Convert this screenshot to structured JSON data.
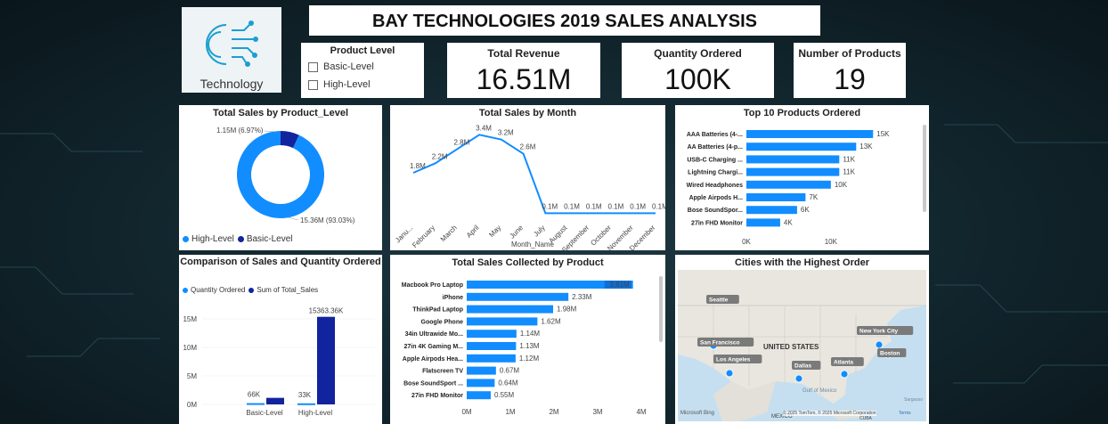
{
  "header": {
    "title": "BAY TECHNOLOGIES 2019 SALES ANALYSIS",
    "logo_text": "Technology"
  },
  "slicer": {
    "title": "Product Level",
    "options": [
      "Basic-Level",
      "High-Level"
    ]
  },
  "kpis": [
    {
      "label": "Total Revenue",
      "value": "16.51M"
    },
    {
      "label": "Quantity Ordered",
      "value": "100K"
    },
    {
      "label": "Number of Products",
      "value": "19"
    }
  ],
  "colors": {
    "primary": "#118DFF",
    "dark": "#12239E",
    "accent_label_bg": "#0F6FD6"
  },
  "donut": {
    "title": "Total Sales by Product_Level",
    "labels": [
      "1.15M (6.97%)",
      "15.36M (93.03%)"
    ],
    "legend": [
      "High-Level",
      "Basic-Level"
    ]
  },
  "month": {
    "title": "Total Sales by Month",
    "xlabel": "Month_Name",
    "point_labels": [
      "1.8M",
      "2.2M",
      "2.8M",
      "3.4M",
      "3.2M",
      "2.6M",
      "0.1M",
      "0.1M",
      "0.1M",
      "0.1M",
      "0.1M",
      "0.1M"
    ]
  },
  "top10": {
    "title": "Top 10 Products Ordered",
    "axis": [
      "0K",
      "10K"
    ]
  },
  "compare": {
    "title": "Comparison of Sales and Quantity Ordered",
    "legend": [
      "Quantity Ordered",
      "Sum of Total_Sales"
    ],
    "yticks": [
      "15M",
      "10M",
      "5M",
      "0M"
    ]
  },
  "collected": {
    "title": "Total Sales Collected by Product",
    "axis": [
      "0M",
      "1M",
      "2M",
      "3M",
      "4M"
    ]
  },
  "cities": {
    "title": "Cities with the Highest Order",
    "country": "UNITED STATES",
    "gulf": "Gulf of Mexico",
    "mexico": "MEXICO",
    "cuba": "CUBA",
    "sargasso": "Sargasso",
    "bing": "Microsoft Bing",
    "copyright": "© 2025 TomTom, © 2025 Microsoft Corporation",
    "terms": "Terms",
    "labels": [
      "Seattle",
      "San Francisco",
      "Los Angeles",
      "Dallas",
      "Atlanta",
      "New York City",
      "Boston"
    ]
  },
  "chart_data": [
    {
      "type": "pie",
      "title": "Total Sales by Product_Level",
      "categories": [
        "High-Level",
        "Basic-Level"
      ],
      "values": [
        15.36,
        1.15
      ],
      "unit": "M",
      "percent": [
        93.03,
        6.97
      ]
    },
    {
      "type": "line",
      "title": "Total Sales by Month",
      "xlabel": "Month_Name",
      "categories": [
        "January",
        "February",
        "March",
        "April",
        "May",
        "June",
        "July",
        "August",
        "September",
        "October",
        "November",
        "December"
      ],
      "values": [
        1.8,
        2.2,
        2.8,
        3.4,
        3.2,
        2.6,
        0.1,
        0.1,
        0.1,
        0.1,
        0.1,
        0.1
      ],
      "unit": "M"
    },
    {
      "type": "bar",
      "orientation": "horizontal",
      "title": "Top 10 Products Ordered",
      "categories": [
        "AAA Batteries (4-...",
        "AA Batteries (4-p...",
        "USB-C Charging ...",
        "Lightning Chargi...",
        "Wired Headphones",
        "Apple Airpods H...",
        "Bose SoundSpor...",
        "27in FHD Monitor"
      ],
      "values": [
        15,
        13,
        11,
        11,
        10,
        7,
        6,
        4
      ],
      "value_labels": [
        "15K",
        "13K",
        "11K",
        "11K",
        "10K",
        "7K",
        "6K",
        "4K"
      ],
      "xlim": [
        0,
        15
      ]
    },
    {
      "type": "bar",
      "title": "Comparison of Sales and Quantity Ordered",
      "categories": [
        "Basic-Level",
        "High-Level"
      ],
      "series": [
        {
          "name": "Quantity Ordered",
          "values": [
            66,
            33
          ],
          "value_labels": [
            "66K",
            "33K"
          ]
        },
        {
          "name": "Sum of Total_Sales",
          "values": [
            1.15,
            15.36336
          ],
          "value_labels": [
            "",
            "15363.36K"
          ]
        }
      ],
      "ylim": [
        0,
        16
      ]
    },
    {
      "type": "bar",
      "orientation": "horizontal",
      "title": "Total Sales Collected by Product",
      "categories": [
        "Macbook Pro Laptop",
        "iPhone",
        "ThinkPad Laptop",
        "Google Phone",
        "34in Ultrawide Mo...",
        "27in 4K Gaming M...",
        "Apple Airpods Hea...",
        "Flatscreen TV",
        "Bose SoundSport ...",
        "27in FHD Monitor"
      ],
      "values": [
        3.81,
        2.33,
        1.98,
        1.62,
        1.14,
        1.13,
        1.12,
        0.67,
        0.64,
        0.55
      ],
      "value_labels": [
        "3.81M",
        "2.33M",
        "1.98M",
        "1.62M",
        "1.14M",
        "1.13M",
        "1.12M",
        "0.67M",
        "0.64M",
        "0.55M"
      ],
      "xlim": [
        0,
        4
      ]
    }
  ]
}
